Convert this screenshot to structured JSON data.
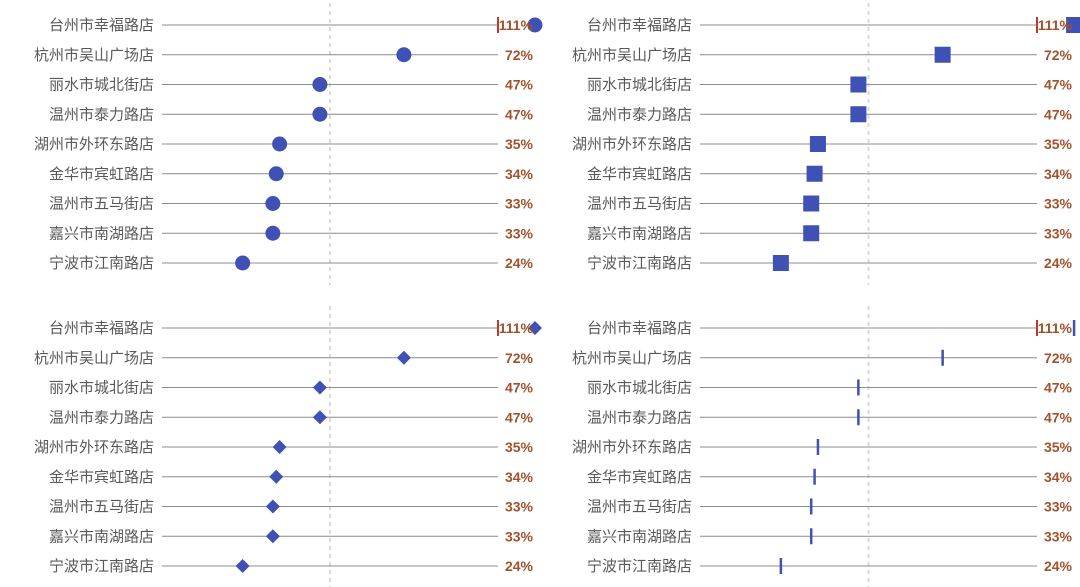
{
  "colors": {
    "marker": "#3f51b5",
    "value_label": "#a0522d",
    "row_line": "#8c8c8c",
    "reference_line": "#d9d9d9",
    "target_mark": "#c0392b"
  },
  "chart_data": [
    {
      "type": "dot",
      "marker": "circle",
      "categories": [
        "台州市幸福路店",
        "杭州市吴山广场店",
        "丽水市城北街店",
        "温州市泰力路店",
        "湖州市外环东路店",
        "金华市宾虹路店",
        "温州市五马街店",
        "嘉兴市南湖路店",
        "宁波市江南路店"
      ],
      "values": [
        1.11,
        0.72,
        0.47,
        0.47,
        0.35,
        0.34,
        0.33,
        0.33,
        0.24
      ],
      "value_labels": [
        "111%",
        "72%",
        "47%",
        "47%",
        "35%",
        "34%",
        "33%",
        "33%",
        "24%"
      ],
      "reference_line": 0.5,
      "target": 1.0,
      "xlim": [
        0,
        1.15
      ],
      "grid": false
    },
    {
      "type": "dot",
      "marker": "square",
      "categories": [
        "台州市幸福路店",
        "杭州市吴山广场店",
        "丽水市城北街店",
        "温州市泰力路店",
        "湖州市外环东路店",
        "金华市宾虹路店",
        "温州市五马街店",
        "嘉兴市南湖路店",
        "宁波市江南路店"
      ],
      "values": [
        1.11,
        0.72,
        0.47,
        0.47,
        0.35,
        0.34,
        0.33,
        0.33,
        0.24
      ],
      "value_labels": [
        "111%",
        "72%",
        "47%",
        "47%",
        "35%",
        "34%",
        "33%",
        "33%",
        "24%"
      ],
      "reference_line": 0.5,
      "target": 1.0,
      "xlim": [
        0,
        1.15
      ],
      "grid": false
    },
    {
      "type": "dot",
      "marker": "diamond",
      "categories": [
        "台州市幸福路店",
        "杭州市吴山广场店",
        "丽水市城北街店",
        "温州市泰力路店",
        "湖州市外环东路店",
        "金华市宾虹路店",
        "温州市五马街店",
        "嘉兴市南湖路店",
        "宁波市江南路店"
      ],
      "values": [
        1.11,
        0.72,
        0.47,
        0.47,
        0.35,
        0.34,
        0.33,
        0.33,
        0.24
      ],
      "value_labels": [
        "111%",
        "72%",
        "47%",
        "47%",
        "35%",
        "34%",
        "33%",
        "33%",
        "24%"
      ],
      "reference_line": 0.5,
      "target": 1.0,
      "xlim": [
        0,
        1.15
      ],
      "grid": false
    },
    {
      "type": "dot",
      "marker": "tick",
      "categories": [
        "台州市幸福路店",
        "杭州市吴山广场店",
        "丽水市城北街店",
        "温州市泰力路店",
        "湖州市外环东路店",
        "金华市宾虹路店",
        "温州市五马街店",
        "嘉兴市南湖路店",
        "宁波市江南路店"
      ],
      "values": [
        1.11,
        0.72,
        0.47,
        0.47,
        0.35,
        0.34,
        0.33,
        0.33,
        0.24
      ],
      "value_labels": [
        "111%",
        "72%",
        "47%",
        "47%",
        "35%",
        "34%",
        "33%",
        "33%",
        "24%"
      ],
      "reference_line": 0.5,
      "target": 1.0,
      "xlim": [
        0,
        1.15
      ],
      "grid": false
    }
  ]
}
